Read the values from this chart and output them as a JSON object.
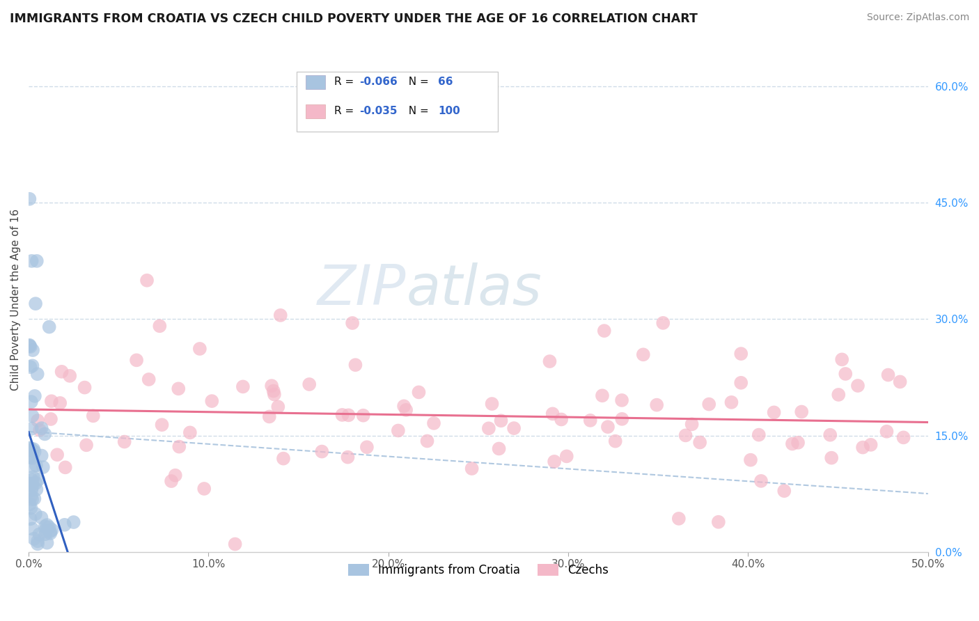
{
  "title": "IMMIGRANTS FROM CROATIA VS CZECH CHILD POVERTY UNDER THE AGE OF 16 CORRELATION CHART",
  "source": "Source: ZipAtlas.com",
  "ylabel": "Child Poverty Under the Age of 16",
  "legend_labels": [
    "Immigrants from Croatia",
    "Czechs"
  ],
  "legend_r": [
    -0.066,
    -0.035
  ],
  "legend_n": [
    66,
    100
  ],
  "xlim": [
    0,
    0.5
  ],
  "ylim": [
    0,
    0.65
  ],
  "xticks": [
    0.0,
    0.1,
    0.2,
    0.3,
    0.4,
    0.5
  ],
  "xticklabels": [
    "0.0%",
    "10.0%",
    "20.0%",
    "30.0%",
    "40.0%",
    "50.0%"
  ],
  "ytick_vals": [
    0.0,
    0.15,
    0.3,
    0.45,
    0.6
  ],
  "yticklabels_right": [
    "0.0%",
    "15.0%",
    "30.0%",
    "45.0%",
    "60.0%"
  ],
  "color_croatia": "#a8c4e0",
  "color_czech": "#f4b8c8",
  "color_line_croatia": "#3060c0",
  "color_line_czech": "#e87090",
  "watermark_zip": "ZIP",
  "watermark_atlas": "atlas",
  "grid_color": "#d0dce8"
}
